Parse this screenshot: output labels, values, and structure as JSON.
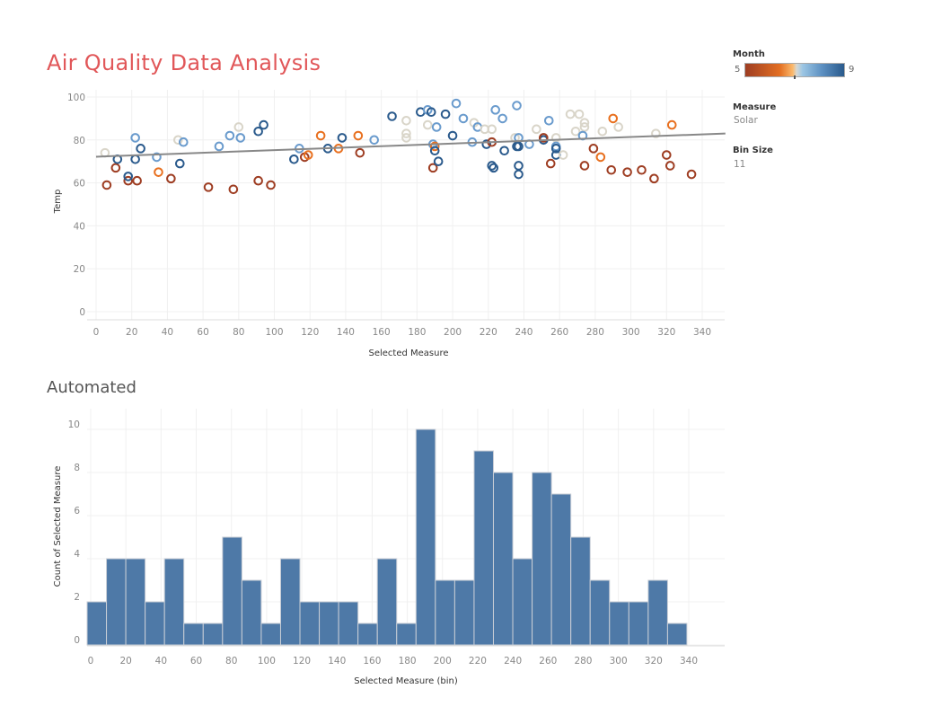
{
  "title": "Air Quality Data Analysis",
  "subtitle": "Automated",
  "legend": {
    "month_label": "Month",
    "month_min": "5",
    "month_max": "9",
    "month_colors": {
      "5": "#9e3d22",
      "6": "#e8701f",
      "7": "#d9d5c9",
      "8": "#6a9bcd",
      "9": "#2a5a8c"
    },
    "measure_label": "Measure",
    "measure_value": "Solar",
    "bin_label": "Bin Size",
    "bin_value": "11"
  },
  "chart_data": [
    {
      "type": "scatter",
      "xlabel": "Selected Measure",
      "ylabel": "Temp",
      "xlim": [
        0,
        350
      ],
      "ylim": [
        0,
        100
      ],
      "xticks": [
        "0",
        "20",
        "40",
        "60",
        "80",
        "100",
        "120",
        "140",
        "160",
        "180",
        "200",
        "220",
        "240",
        "260",
        "280",
        "300",
        "320",
        "340"
      ],
      "yticks": [
        "0",
        "20",
        "40",
        "60",
        "80",
        "100"
      ],
      "grid": true,
      "trend_line": {
        "x": [
          0,
          353
        ],
        "y": [
          72.2,
          83
        ]
      },
      "points": [
        [
          5,
          74,
          7
        ],
        [
          6,
          59,
          5
        ],
        [
          11,
          67,
          5
        ],
        [
          12,
          71,
          9
        ],
        [
          18,
          61,
          5
        ],
        [
          18,
          63,
          9
        ],
        [
          22,
          81,
          8
        ],
        [
          22,
          71,
          9
        ],
        [
          23,
          61,
          5
        ],
        [
          25,
          76,
          9
        ],
        [
          34,
          72,
          8
        ],
        [
          35,
          65,
          6
        ],
        [
          42,
          62,
          5
        ],
        [
          46,
          80,
          7
        ],
        [
          47,
          69,
          9
        ],
        [
          49,
          79,
          8
        ],
        [
          63,
          58,
          5
        ],
        [
          69,
          77,
          8
        ],
        [
          75,
          82,
          8
        ],
        [
          77,
          57,
          5
        ],
        [
          80,
          86,
          7
        ],
        [
          81,
          81,
          8
        ],
        [
          91,
          84,
          9
        ],
        [
          91,
          61,
          5
        ],
        [
          94,
          87,
          9
        ],
        [
          98,
          59,
          5
        ],
        [
          111,
          71,
          9
        ],
        [
          114,
          76,
          8
        ],
        [
          117,
          72,
          5
        ],
        [
          119,
          73,
          6
        ],
        [
          126,
          82,
          6
        ],
        [
          130,
          76,
          9
        ],
        [
          136,
          76,
          6
        ],
        [
          138,
          81,
          9
        ],
        [
          147,
          82,
          6
        ],
        [
          148,
          74,
          5
        ],
        [
          156,
          80,
          8
        ],
        [
          166,
          91,
          9
        ],
        [
          174,
          89,
          7
        ],
        [
          174,
          83,
          7
        ],
        [
          174,
          81,
          7
        ],
        [
          182,
          93,
          9
        ],
        [
          186,
          94,
          8
        ],
        [
          188,
          93,
          9
        ],
        [
          186,
          87,
          7
        ],
        [
          191,
          86,
          8
        ],
        [
          196,
          92,
          9
        ],
        [
          189,
          78,
          8
        ],
        [
          190,
          77,
          6
        ],
        [
          190,
          75,
          9
        ],
        [
          189,
          67,
          5
        ],
        [
          192,
          70,
          9
        ],
        [
          202,
          97,
          8
        ],
        [
          200,
          82,
          9
        ],
        [
          206,
          90,
          8
        ],
        [
          212,
          88,
          7
        ],
        [
          214,
          86,
          8
        ],
        [
          211,
          79,
          8
        ],
        [
          218,
          85,
          7
        ],
        [
          222,
          85,
          7
        ],
        [
          219,
          78,
          9
        ],
        [
          222,
          79,
          5
        ],
        [
          222,
          68,
          9
        ],
        [
          223,
          67,
          9
        ],
        [
          224,
          94,
          8
        ],
        [
          228,
          90,
          8
        ],
        [
          229,
          75,
          9
        ],
        [
          236,
          96,
          8
        ],
        [
          235,
          81,
          7
        ],
        [
          237,
          81,
          8
        ],
        [
          236,
          77,
          9
        ],
        [
          237,
          77,
          9
        ],
        [
          237,
          68,
          9
        ],
        [
          237,
          64,
          9
        ],
        [
          243,
          78,
          8
        ],
        [
          247,
          85,
          7
        ],
        [
          251,
          81,
          7
        ],
        [
          251,
          80,
          9
        ],
        [
          251,
          81,
          5
        ],
        [
          254,
          89,
          8
        ],
        [
          255,
          69,
          5
        ],
        [
          258,
          81,
          7
        ],
        [
          258,
          77,
          8
        ],
        [
          258,
          76,
          9
        ],
        [
          258,
          73,
          9
        ],
        [
          262,
          73,
          7
        ],
        [
          266,
          92,
          7
        ],
        [
          271,
          92,
          7
        ],
        [
          269,
          84,
          7
        ],
        [
          274,
          88,
          7
        ],
        [
          274,
          86,
          7
        ],
        [
          273,
          82,
          8
        ],
        [
          274,
          68,
          5
        ],
        [
          279,
          76,
          5
        ],
        [
          283,
          72,
          6
        ],
        [
          284,
          84,
          7
        ],
        [
          289,
          66,
          5
        ],
        [
          290,
          90,
          6
        ],
        [
          293,
          86,
          7
        ],
        [
          298,
          65,
          5
        ],
        [
          306,
          66,
          5
        ],
        [
          313,
          62,
          5
        ],
        [
          314,
          83,
          7
        ],
        [
          320,
          73,
          5
        ],
        [
          322,
          68,
          5
        ],
        [
          323,
          87,
          6
        ],
        [
          334,
          64,
          5
        ]
      ]
    },
    {
      "type": "bar",
      "xlabel": "Selected Measure (bin)",
      "ylabel": "Count of Selected Measure",
      "bin_width": 11,
      "bin_starts": [
        0,
        11,
        22,
        33,
        44,
        55,
        66,
        77,
        88,
        99,
        110,
        121,
        132,
        143,
        154,
        165,
        176,
        187,
        198,
        209,
        220,
        231,
        242,
        253,
        264,
        275,
        286,
        297,
        308,
        319,
        330
      ],
      "values": [
        2,
        4,
        4,
        2,
        4,
        1,
        1,
        5,
        3,
        1,
        4,
        2,
        2,
        2,
        1,
        4,
        1,
        10,
        3,
        3,
        9,
        8,
        4,
        8,
        7,
        5,
        3,
        2,
        2,
        3,
        1
      ],
      "xlim": [
        0,
        350
      ],
      "ylim": [
        0,
        10
      ],
      "xticks": [
        "0",
        "20",
        "40",
        "60",
        "80",
        "100",
        "120",
        "140",
        "160",
        "180",
        "200",
        "220",
        "240",
        "260",
        "280",
        "300",
        "320",
        "340"
      ],
      "yticks": [
        "0",
        "2",
        "4",
        "6",
        "8",
        "10"
      ],
      "bar_color": "#4e79a7",
      "grid": true
    }
  ]
}
